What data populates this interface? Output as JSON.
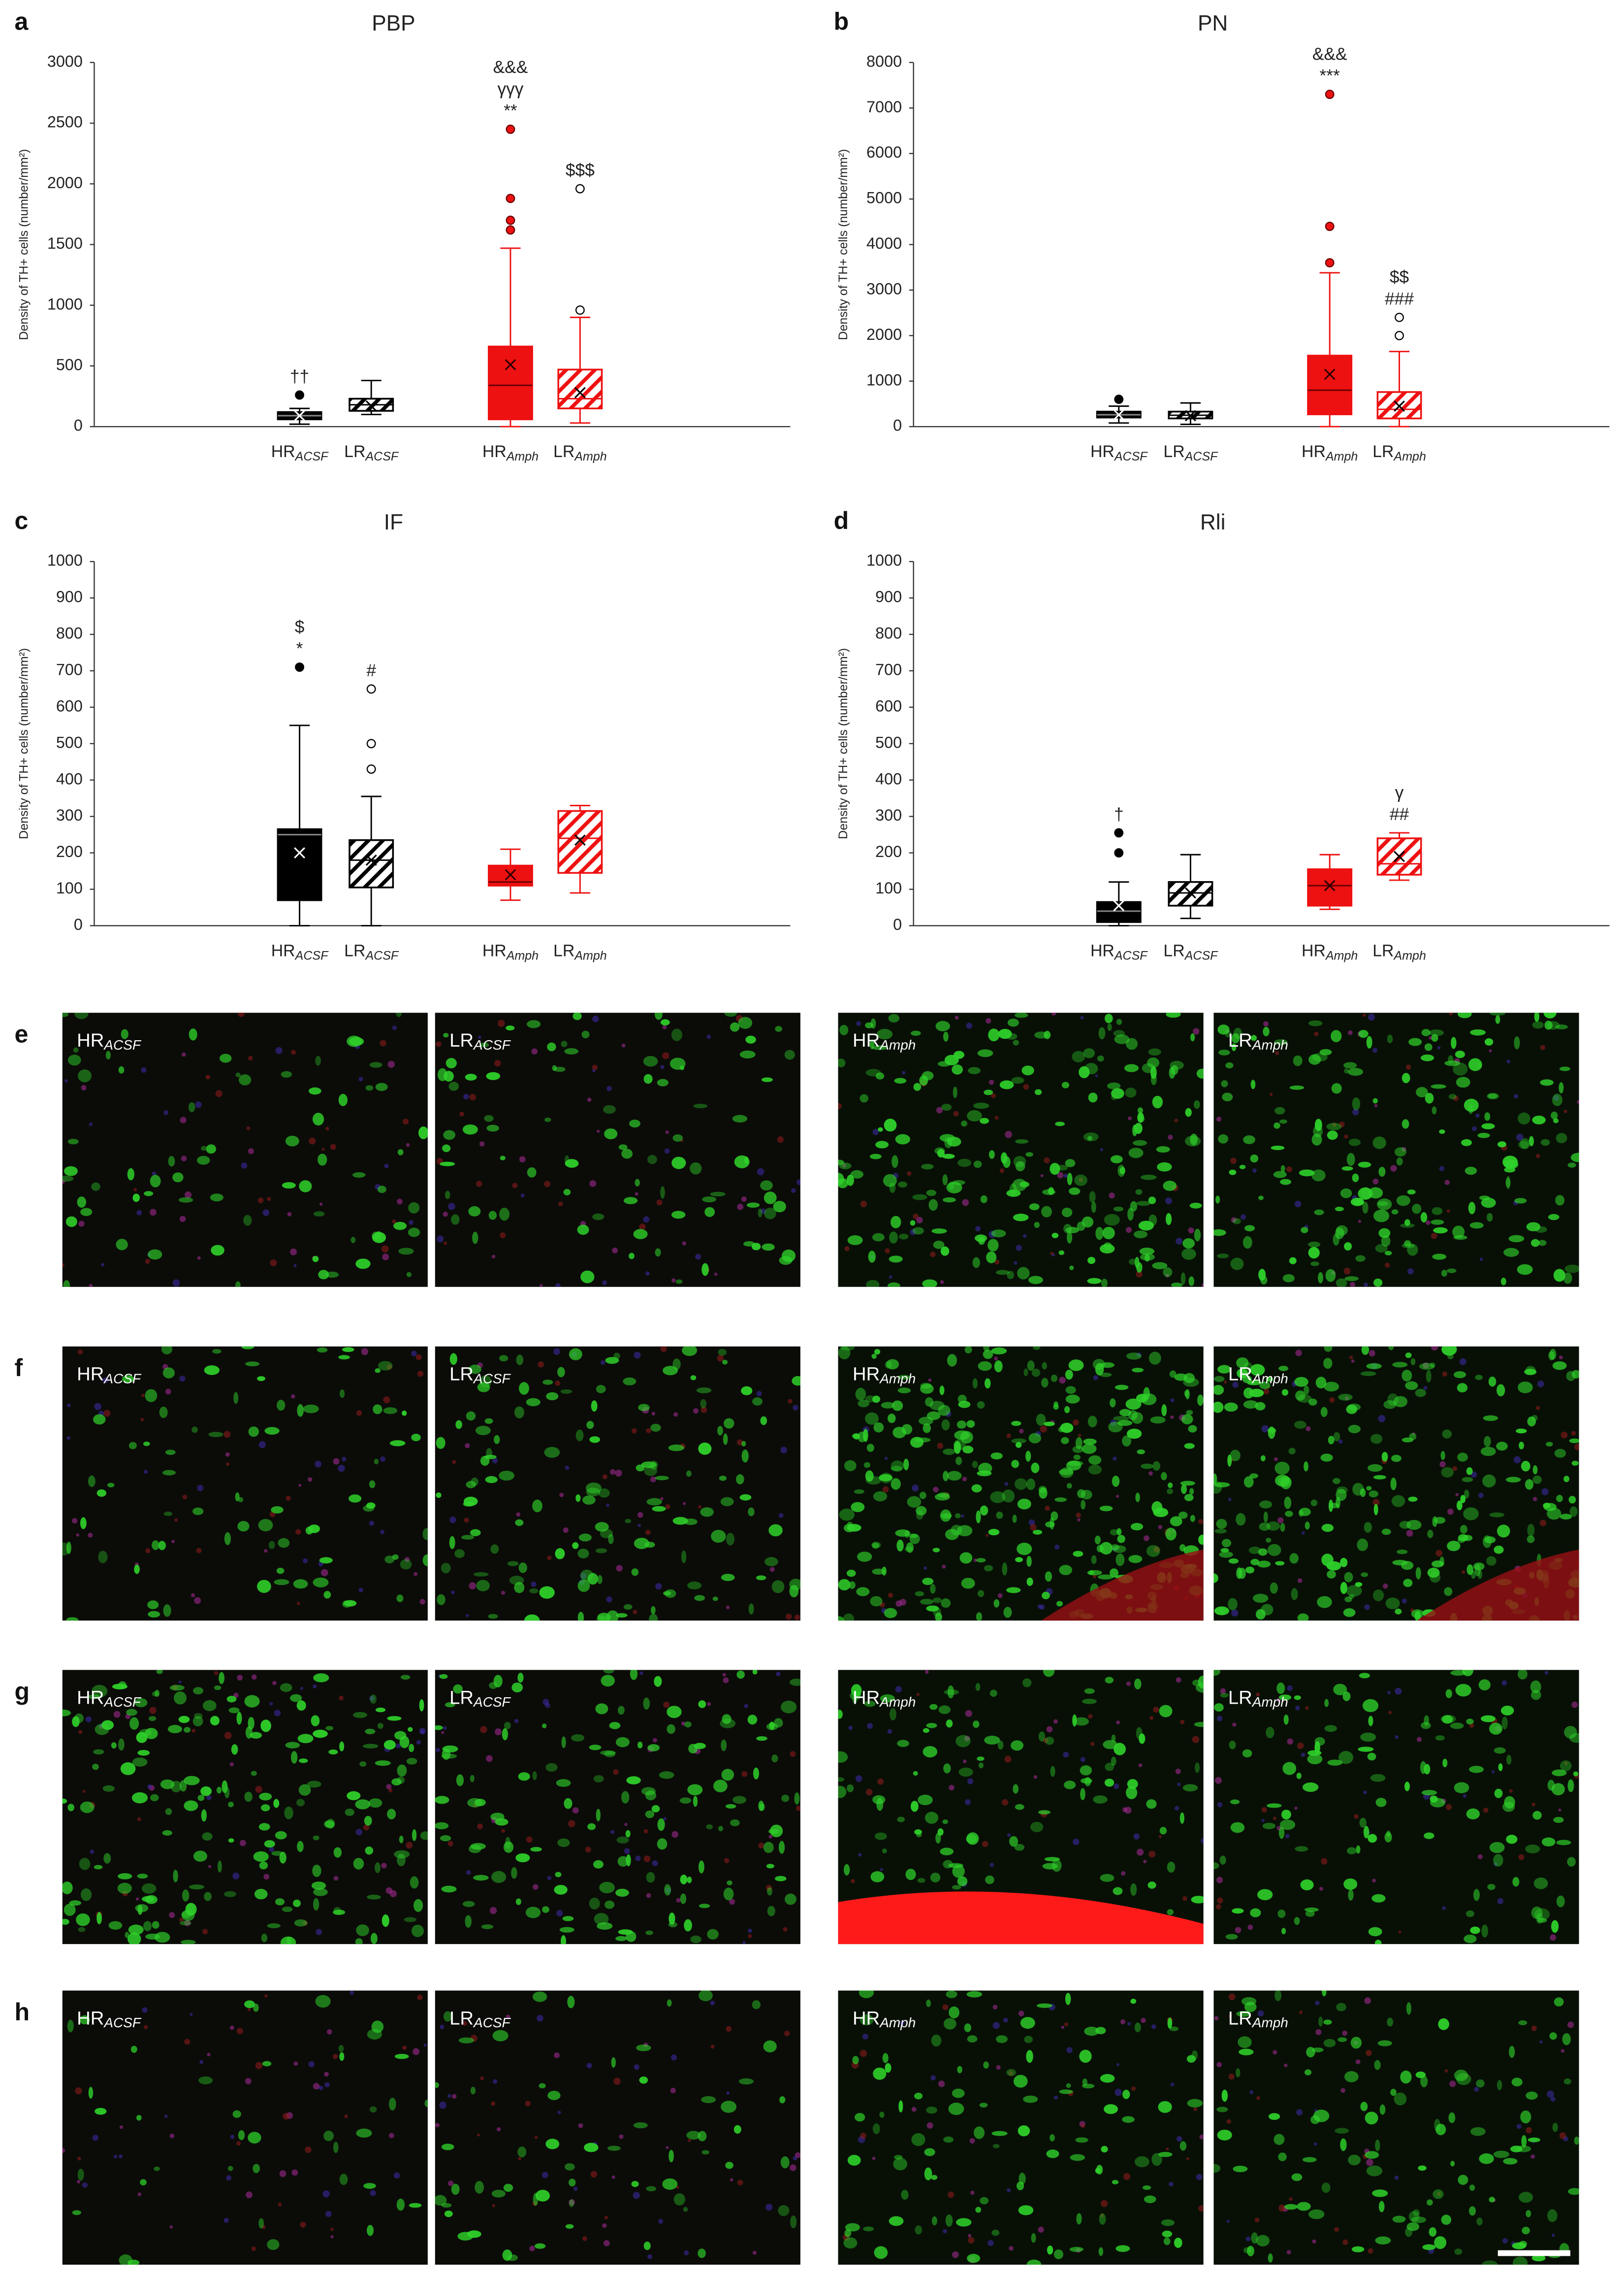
{
  "chart_data": [
    {
      "type": "box",
      "panel": "a",
      "title": "PBP",
      "y_label": "Density of TH+ cells (number/mm²)",
      "ylim": [
        0,
        3000
      ],
      "yticks": [
        0,
        500,
        1000,
        1500,
        2000,
        2500,
        3000
      ],
      "categories": [
        "HR",
        "LR",
        "HR",
        "LR"
      ],
      "category_subscripts": [
        "ACSF",
        "ACSF",
        "Amph",
        "Amph"
      ],
      "boxes": [
        {
          "min": 20,
          "q1": 60,
          "median": 90,
          "q3": 120,
          "max": 150,
          "mean": 90,
          "outliers": [
            260
          ],
          "color": "#000000",
          "hatch": false,
          "annotations": [
            "††"
          ]
        },
        {
          "min": 100,
          "q1": 130,
          "median": 180,
          "q3": 230,
          "max": 380,
          "mean": 170,
          "color": "#000000",
          "hatch": true
        },
        {
          "min": 0,
          "q1": 60,
          "median": 340,
          "q3": 660,
          "max": 1470,
          "mean": 510,
          "outliers": [
            1620,
            1700,
            1880,
            2450
          ],
          "color": "#ee1111",
          "hatch": false,
          "annotations": [
            "&&&",
            "γγγ",
            "**"
          ]
        },
        {
          "min": 30,
          "q1": 150,
          "median": 230,
          "q3": 470,
          "max": 900,
          "mean": 280,
          "outliers": [
            960,
            1960
          ],
          "color": "#ee1111",
          "hatch": true,
          "annotations": [
            "$$$"
          ]
        }
      ]
    },
    {
      "type": "box",
      "panel": "b",
      "title": "PN",
      "y_label": "Density of TH+ cells (number/mm²)",
      "ylim": [
        0,
        8000
      ],
      "yticks": [
        0,
        1000,
        2000,
        3000,
        4000,
        5000,
        6000,
        7000,
        8000
      ],
      "categories": [
        "HR",
        "LR",
        "HR",
        "LR"
      ],
      "category_subscripts": [
        "ACSF",
        "ACSF",
        "Amph",
        "Amph"
      ],
      "boxes": [
        {
          "min": 80,
          "q1": 200,
          "median": 260,
          "q3": 330,
          "max": 450,
          "mean": 260,
          "outliers": [
            600
          ],
          "color": "#000000",
          "hatch": false
        },
        {
          "min": 50,
          "q1": 180,
          "median": 250,
          "q3": 330,
          "max": 520,
          "mean": 240,
          "color": "#000000",
          "hatch": true
        },
        {
          "min": 0,
          "q1": 270,
          "median": 800,
          "q3": 1560,
          "max": 3380,
          "mean": 1150,
          "outliers": [
            3600,
            4400,
            7300
          ],
          "color": "#ee1111",
          "hatch": false,
          "annotations": [
            "&&&",
            "***"
          ]
        },
        {
          "min": 0,
          "q1": 180,
          "median": 380,
          "q3": 760,
          "max": 1650,
          "mean": 450,
          "outliers": [
            2000,
            2400
          ],
          "color": "#ee1111",
          "hatch": true,
          "annotations": [
            "$$",
            "###"
          ]
        }
      ]
    },
    {
      "type": "box",
      "panel": "c",
      "title": "IF",
      "y_label": "Density of TH+ cells (number/mm²)",
      "ylim": [
        0,
        1000
      ],
      "yticks": [
        0,
        100,
        200,
        300,
        400,
        500,
        600,
        700,
        800,
        900,
        1000
      ],
      "categories": [
        "HR",
        "LR",
        "HR",
        "LR"
      ],
      "category_subscripts": [
        "ACSF",
        "ACSF",
        "Amph",
        "Amph"
      ],
      "boxes": [
        {
          "min": 0,
          "q1": 70,
          "median": 250,
          "q3": 265,
          "max": 550,
          "mean": 200,
          "outliers": [
            710
          ],
          "color": "#000000",
          "hatch": false,
          "annotations": [
            "$",
            "*"
          ]
        },
        {
          "min": 0,
          "q1": 105,
          "median": 180,
          "q3": 235,
          "max": 355,
          "mean": 180,
          "outliers": [
            430,
            500,
            650
          ],
          "color": "#000000",
          "hatch": true,
          "annotations": [
            "#"
          ]
        },
        {
          "min": 70,
          "q1": 110,
          "median": 120,
          "q3": 165,
          "max": 210,
          "mean": 140,
          "color": "#ee1111",
          "hatch": false
        },
        {
          "min": 90,
          "q1": 145,
          "median": 240,
          "q3": 315,
          "max": 330,
          "mean": 235,
          "color": "#ee1111",
          "hatch": true
        }
      ]
    },
    {
      "type": "box",
      "panel": "d",
      "title": "Rli",
      "y_label": "Density of TH+ cells (number/mm²)",
      "ylim": [
        0,
        1000
      ],
      "yticks": [
        0,
        100,
        200,
        300,
        400,
        500,
        600,
        700,
        800,
        900,
        1000
      ],
      "categories": [
        "HR",
        "LR",
        "HR",
        "LR"
      ],
      "category_subscripts": [
        "ACSF",
        "ACSF",
        "Amph",
        "Amph"
      ],
      "boxes": [
        {
          "min": 0,
          "q1": 10,
          "median": 40,
          "q3": 65,
          "max": 120,
          "mean": 55,
          "outliers": [
            200,
            255
          ],
          "color": "#000000",
          "hatch": false,
          "annotations": [
            "†"
          ]
        },
        {
          "min": 20,
          "q1": 55,
          "median": 90,
          "q3": 120,
          "max": 195,
          "mean": 90,
          "color": "#000000",
          "hatch": true
        },
        {
          "min": 45,
          "q1": 55,
          "median": 110,
          "q3": 155,
          "max": 195,
          "mean": 110,
          "color": "#ee1111",
          "hatch": false
        },
        {
          "min": 125,
          "q1": 140,
          "median": 170,
          "q3": 240,
          "max": 255,
          "mean": 190,
          "color": "#ee1111",
          "hatch": true,
          "annotations": [
            "γ",
            "##"
          ]
        }
      ]
    }
  ],
  "micrographs": {
    "rows": [
      {
        "label": "e",
        "panels": [
          {
            "name": "HR",
            "sub": "ACSF"
          },
          {
            "name": "LR",
            "sub": "ACSF"
          },
          {
            "name": "HR",
            "sub": "Amph"
          },
          {
            "name": "LR",
            "sub": "Amph"
          }
        ]
      },
      {
        "label": "f",
        "panels": [
          {
            "name": "HR",
            "sub": "ACSF"
          },
          {
            "name": "LR",
            "sub": "ACSF"
          },
          {
            "name": "HR",
            "sub": "Amph"
          },
          {
            "name": "LR",
            "sub": "Amph"
          }
        ]
      },
      {
        "label": "g",
        "panels": [
          {
            "name": "HR",
            "sub": "ACSF"
          },
          {
            "name": "LR",
            "sub": "ACSF"
          },
          {
            "name": "HR",
            "sub": "Amph"
          },
          {
            "name": "LR",
            "sub": "Amph"
          }
        ]
      },
      {
        "label": "h",
        "panels": [
          {
            "name": "HR",
            "sub": "ACSF"
          },
          {
            "name": "LR",
            "sub": "ACSF"
          },
          {
            "name": "HR",
            "sub": "Amph"
          },
          {
            "name": "LR",
            "sub": "Amph"
          }
        ]
      }
    ]
  }
}
